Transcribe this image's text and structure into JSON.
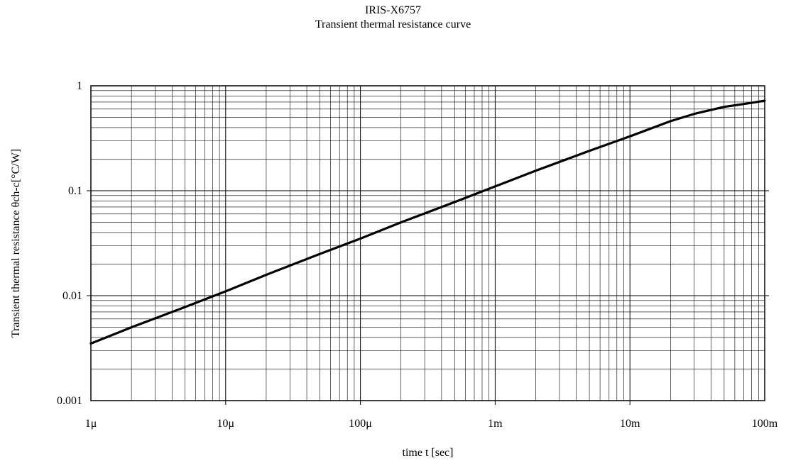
{
  "chart_data": {
    "type": "line",
    "title": "IRIS-X6757",
    "subtitle": "Transient thermal resistance curve",
    "xlabel": "time t [sec]",
    "ylabel": "Transient thermal resistance θch-c[°C/W]",
    "x_scale": "log",
    "y_scale": "log",
    "xlim": [
      1e-06,
      0.1
    ],
    "ylim": [
      0.001,
      1
    ],
    "x_ticks": [
      1e-06,
      1e-05,
      0.0001,
      0.001,
      0.01,
      0.1
    ],
    "x_tick_labels": [
      "1μ",
      "10μ",
      "100μ",
      "1m",
      "10m",
      "100m"
    ],
    "y_ticks": [
      0.001,
      0.01,
      0.1,
      1
    ],
    "y_tick_labels": [
      "0.001",
      "0.01",
      "0.1",
      "1"
    ],
    "grid": true,
    "series": [
      {
        "color": "#000000",
        "x": [
          1e-06,
          2e-06,
          5e-06,
          1e-05,
          2e-05,
          5e-05,
          0.0001,
          0.0002,
          0.0005,
          0.001,
          0.002,
          0.005,
          0.01,
          0.02,
          0.03,
          0.05,
          0.07,
          0.1
        ],
        "y": [
          0.0035,
          0.005,
          0.0078,
          0.011,
          0.0158,
          0.025,
          0.035,
          0.05,
          0.078,
          0.11,
          0.155,
          0.24,
          0.33,
          0.46,
          0.54,
          0.63,
          0.67,
          0.72
        ]
      }
    ]
  }
}
